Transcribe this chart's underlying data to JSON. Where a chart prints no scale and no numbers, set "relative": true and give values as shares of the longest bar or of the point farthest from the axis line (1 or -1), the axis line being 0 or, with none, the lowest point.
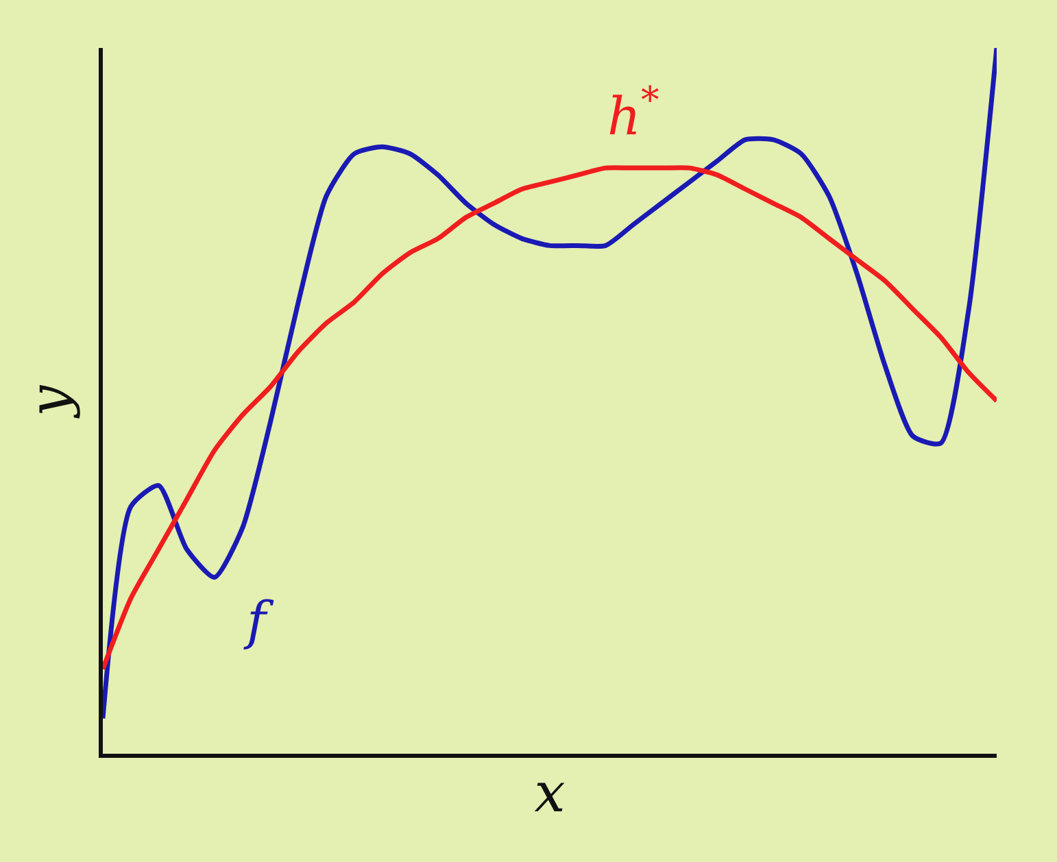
{
  "chart_data": {
    "type": "line",
    "relative": true,
    "xlabel": "x",
    "ylabel": "y",
    "legend": false,
    "categories": [
      null,
      null,
      null,
      null,
      null,
      null,
      null,
      null,
      null,
      null,
      null,
      null,
      null,
      null,
      null,
      null,
      null,
      null,
      null,
      null,
      null,
      null,
      null,
      null,
      null,
      null,
      null,
      null,
      null,
      null,
      null,
      null,
      null
    ],
    "series": [
      {
        "name": "f",
        "color": "#1a1ab4",
        "values": [
          0.05,
          0.35,
          0.38,
          0.29,
          0.25,
          0.32,
          0.47,
          0.64,
          0.79,
          0.85,
          0.86,
          0.85,
          0.82,
          0.78,
          0.75,
          0.73,
          0.72,
          0.72,
          0.72,
          0.75,
          0.78,
          0.81,
          0.84,
          0.87,
          0.87,
          0.85,
          0.79,
          0.68,
          0.55,
          0.45,
          0.44,
          0.63,
          1
        ]
      },
      {
        "name": "h$^{*}$",
        "color": "#f01e1e",
        "values": [
          0.12,
          0.22,
          0.29,
          0.36,
          0.43,
          0.48,
          0.52,
          0.57,
          0.61,
          0.64,
          0.68,
          0.71,
          0.73,
          0.76,
          0.78,
          0.8,
          0.81,
          0.82,
          0.83,
          0.83,
          0.83,
          0.83,
          0.82,
          0.8,
          0.78,
          0.76,
          0.73,
          0.7,
          0.67,
          0.63,
          0.59,
          0.54,
          0.5
        ]
      }
    ]
  }
}
